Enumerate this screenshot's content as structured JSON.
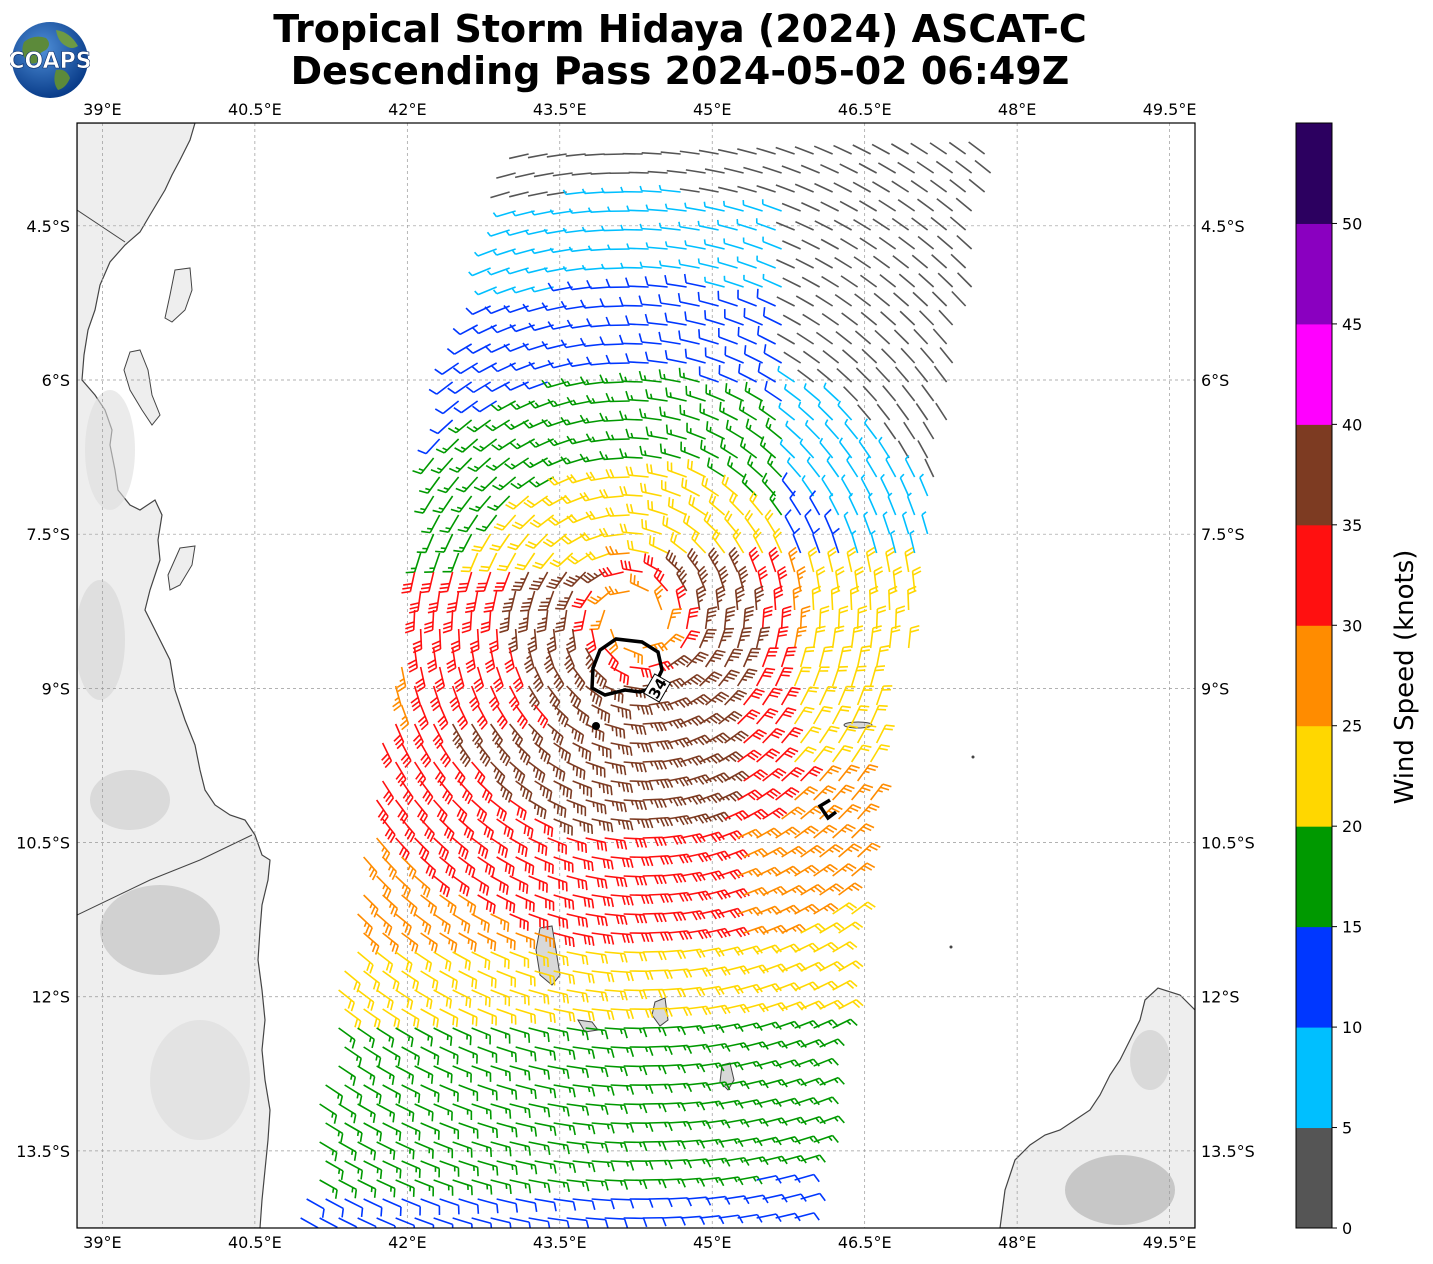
{
  "title": {
    "line1": "Tropical Storm Hidaya (2024) ASCAT-C",
    "line2": "Descending Pass 2024-05-02 06:49Z"
  },
  "logo": {
    "text": "COAPS",
    "icon": "globe-logo"
  },
  "map": {
    "lon_range": [
      38.75,
      49.75
    ],
    "lat_range": [
      -14.25,
      -3.5
    ],
    "lon_ticks": [
      "39°E",
      "40.5°E",
      "42°E",
      "43.5°E",
      "45°E",
      "46.5°E",
      "48°E",
      "49.5°E"
    ],
    "lat_ticks": [
      "4.5°S",
      "6°S",
      "7.5°S",
      "9°S",
      "10.5°S",
      "12°S",
      "13.5°S"
    ],
    "grid": true,
    "contour_label": "34",
    "barb_color_scale_knots": [
      0,
      5,
      10,
      15,
      20,
      25,
      30,
      35,
      40,
      45,
      50
    ]
  },
  "colorbar": {
    "label": "Wind Speed (knots)",
    "ticks": [
      "0",
      "5",
      "10",
      "15",
      "20",
      "25",
      "30",
      "35",
      "40",
      "45",
      "50"
    ],
    "colors": [
      "#555555",
      "#00bfff",
      "#0037ff",
      "#009900",
      "#ffd700",
      "#ff8c00",
      "#ff1010",
      "#7d3b22",
      "#ff00ff",
      "#8a00c0",
      "#2c0060"
    ]
  }
}
